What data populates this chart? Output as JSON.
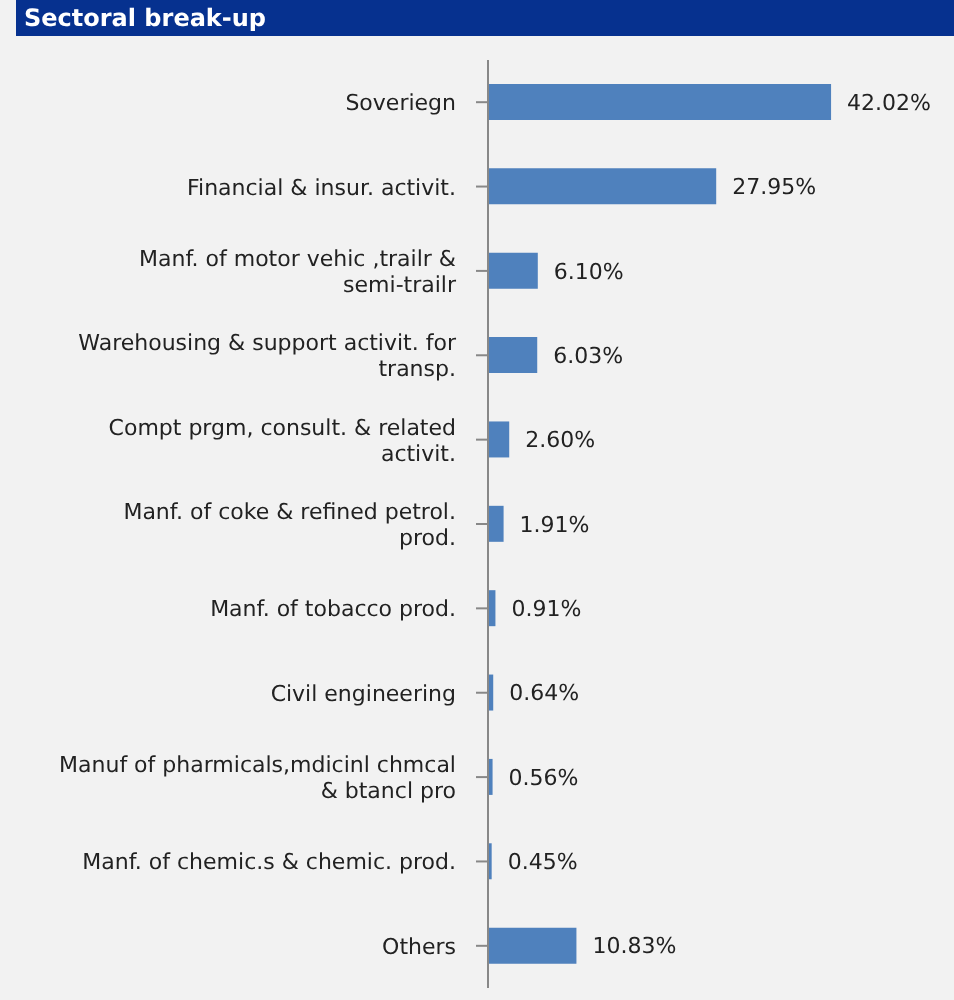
{
  "chart_data": {
    "type": "bar",
    "orientation": "horizontal",
    "title": "Sectoral break-up",
    "categories": [
      "Soveriegn",
      "Financial & insur. activit.",
      "Manf. of motor vehic ,trailr & semi-trailr",
      "Warehousing & support activit. for transp.",
      "Compt prgm, consult. & related activit.",
      "Manf. of coke & refined petrol. prod.",
      "Manf. of tobacco prod.",
      "Civil engineering",
      "Manuf of pharmicals,mdicinl chmcal & btancl pro",
      "Manf. of chemic.s & chemic. prod.",
      "Others"
    ],
    "values": [
      42.02,
      27.95,
      6.1,
      6.03,
      2.6,
      1.91,
      0.91,
      0.64,
      0.56,
      0.45,
      10.83
    ],
    "value_labels": [
      "42.02%",
      "27.95%",
      "6.10%",
      "6.03%",
      "2.60%",
      "1.91%",
      "0.91%",
      "0.64%",
      "0.56%",
      "0.45%",
      "10.83%"
    ],
    "color": "#4f81bd",
    "grid": false,
    "legend": false
  }
}
